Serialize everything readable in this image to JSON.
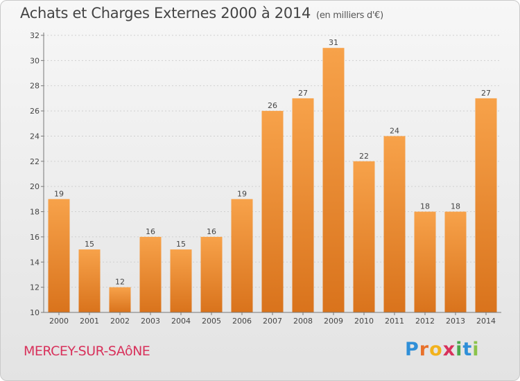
{
  "chart_data": {
    "type": "bar",
    "title": "Achats et Charges Externes 2000 à 2014",
    "subtitle": "(en milliers d'€)",
    "categories": [
      "2000",
      "2001",
      "2002",
      "2003",
      "2004",
      "2005",
      "2006",
      "2007",
      "2008",
      "2009",
      "2010",
      "2011",
      "2012",
      "2013",
      "2014"
    ],
    "values": [
      19,
      15,
      12,
      16,
      15,
      16,
      19,
      26,
      27,
      31,
      22,
      24,
      18,
      18,
      27
    ],
    "ylim": [
      10,
      32
    ],
    "yticks": [
      10,
      12,
      14,
      16,
      18,
      20,
      22,
      24,
      26,
      28,
      30,
      32
    ],
    "grid": true,
    "bar_color": "#f0902a"
  },
  "town": "MERCEY-SUR-SAôNE",
  "logo": {
    "letters": [
      "P",
      "r",
      "o",
      "x",
      "i",
      "t",
      "i"
    ],
    "colors": [
      "#2f8fd8",
      "#e8702a",
      "#f2b21d",
      "#d8315b",
      "#4aa84a",
      "#2f8fd8",
      "#8bc34a"
    ]
  }
}
